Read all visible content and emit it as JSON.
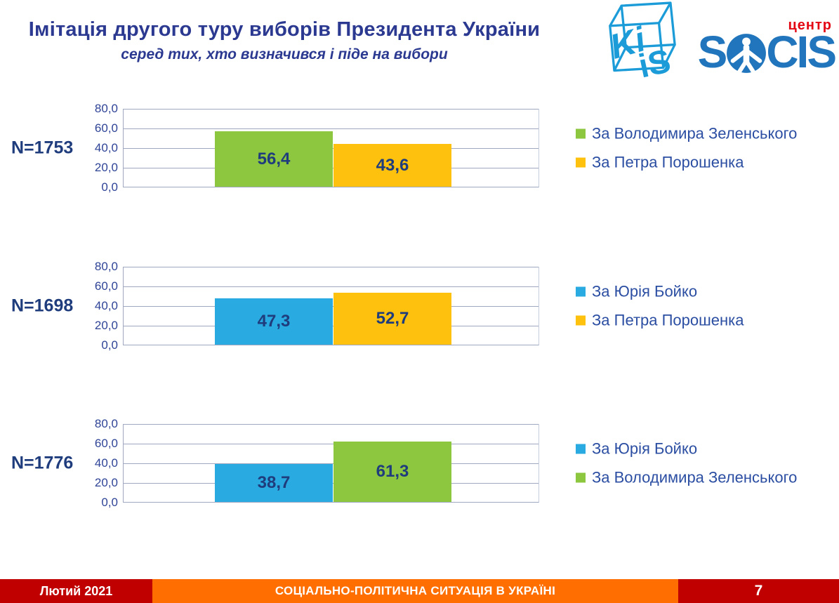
{
  "header": {
    "title": "Імітація другого туру виборів Президента України",
    "subtitle": "серед тих, хто визначився і піде на вибори",
    "kiis_left": "Ki",
    "kiis_right": "iS",
    "socis_s": "S",
    "socis_cis": "CIS",
    "socis_center_label": "центр"
  },
  "colors": {
    "title_blue": "#2B3990",
    "value_navy": "#1F3C7D",
    "tick_blue": "#2F4497",
    "legend_blue": "#2B4EA2",
    "gridline": "#9FA8C0",
    "bar_green": "#8DC63F",
    "bar_yellow": "#FEC10D",
    "bar_blue": "#29ABE2",
    "footer_red": "#C00000",
    "footer_orange": "#FF6E00",
    "kiis_logo_blue": "#1B9CD8",
    "socis_logo_blue": "#2175BC",
    "center_label_red": "#E30613"
  },
  "chart_data": [
    {
      "type": "bar",
      "n_label": "N=1753",
      "ylim": [
        0,
        80
      ],
      "yticks": [
        "80,0",
        "60,0",
        "40,0",
        "20,0",
        "0,0"
      ],
      "grid": true,
      "legend_position": "right",
      "series": [
        {
          "name": "За Володимира Зеленського",
          "value": 56.4,
          "label": "56,4",
          "color": "#8DC63F"
        },
        {
          "name": "За Петра Порошенка",
          "value": 43.6,
          "label": "43,6",
          "color": "#FEC10D"
        }
      ]
    },
    {
      "type": "bar",
      "n_label": "N=1698",
      "ylim": [
        0,
        80
      ],
      "yticks": [
        "80,0",
        "60,0",
        "40,0",
        "20,0",
        "0,0"
      ],
      "grid": true,
      "legend_position": "right",
      "series": [
        {
          "name": "За Юрія Бойко",
          "value": 47.3,
          "label": "47,3",
          "color": "#29ABE2"
        },
        {
          "name": "За Петра Порошенка",
          "value": 52.7,
          "label": "52,7",
          "color": "#FEC10D"
        }
      ]
    },
    {
      "type": "bar",
      "n_label": "N=1776",
      "ylim": [
        0,
        80
      ],
      "yticks": [
        "80,0",
        "60,0",
        "40,0",
        "20,0",
        "0,0"
      ],
      "grid": true,
      "legend_position": "right",
      "series": [
        {
          "name": "За Юрія Бойко",
          "value": 38.7,
          "label": "38,7",
          "color": "#29ABE2"
        },
        {
          "name": "За Володимира Зеленського",
          "value": 61.3,
          "label": "61,3",
          "color": "#8DC63F"
        }
      ]
    }
  ],
  "footer": {
    "date": "Лютий 2021",
    "title": "СОЦІАЛЬНО-ПОЛІТИЧНА СИТУАЦІЯ В УКРАЇНІ",
    "page": "7"
  }
}
